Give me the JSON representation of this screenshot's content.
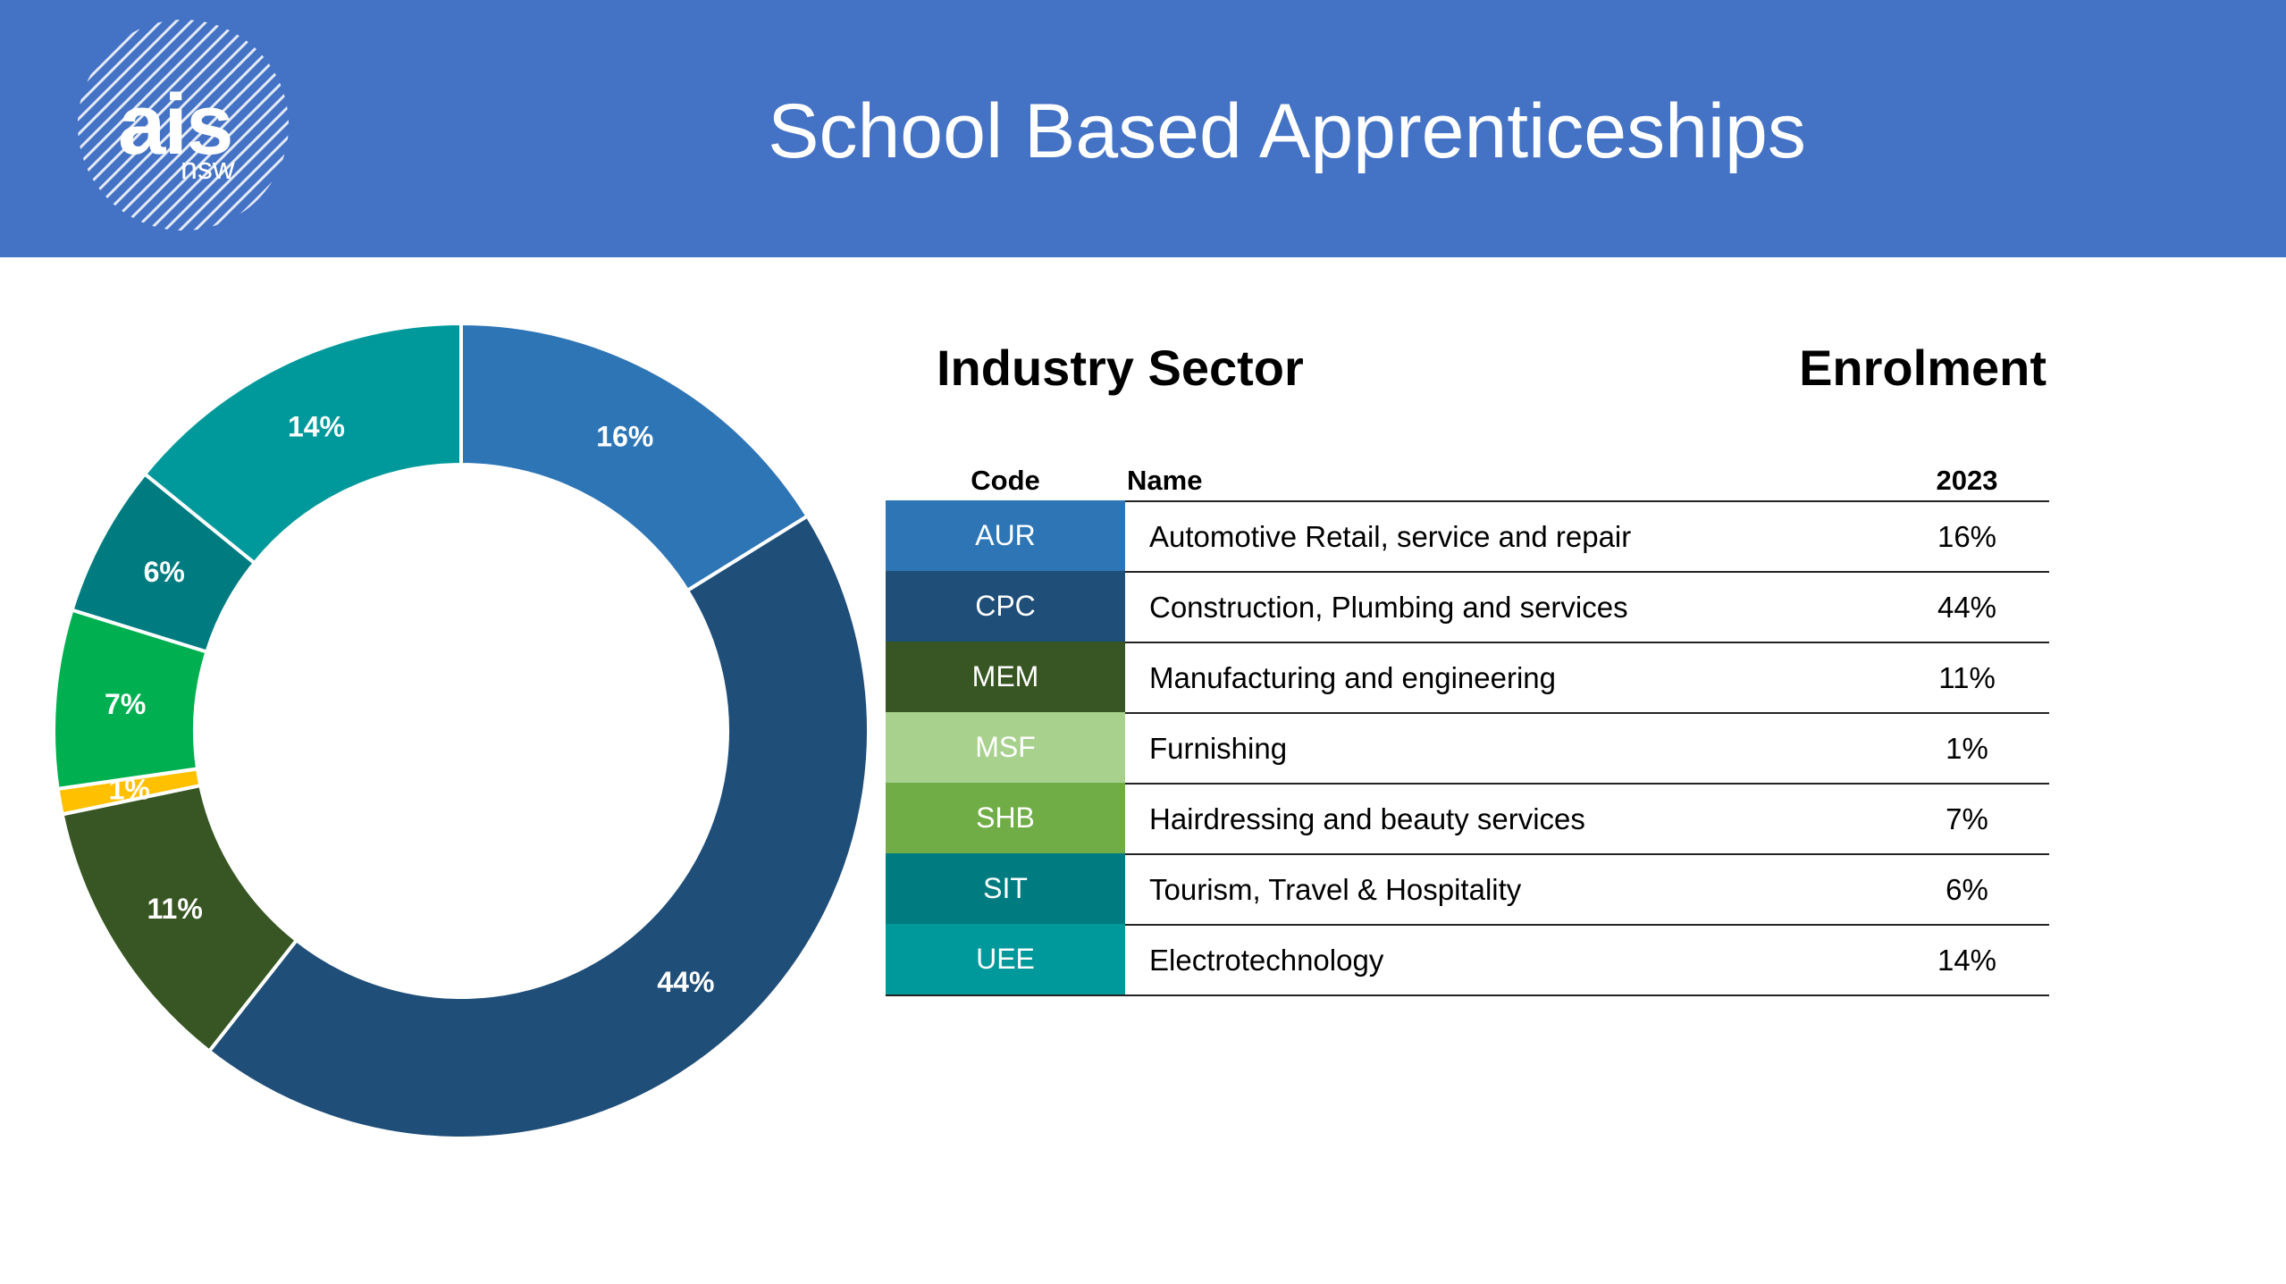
{
  "header": {
    "title": "School Based Apprenticeships",
    "logo_main": "ais",
    "logo_sub": "nsw",
    "background": "#4472C4"
  },
  "headings": {
    "left": "Industry Sector",
    "right": "Enrolment"
  },
  "table": {
    "columns": [
      "Code",
      "Name",
      "2023"
    ],
    "rows": [
      {
        "code": "AUR",
        "name": "Automotive Retail, service and repair",
        "value": "16%",
        "color": "#2E75B6"
      },
      {
        "code": "CPC",
        "name": "Construction, Plumbing and services",
        "value": "44%",
        "color": "#1F4E79"
      },
      {
        "code": "MEM",
        "name": "Manufacturing and engineering",
        "value": "11%",
        "color": "#375623"
      },
      {
        "code": "MSF",
        "name": "Furnishing",
        "value": "1%",
        "color": "#A9D18E"
      },
      {
        "code": "SHB",
        "name": "Hairdressing and beauty services",
        "value": "7%",
        "color": "#70AD47"
      },
      {
        "code": "SIT",
        "name": "Tourism, Travel & Hospitality",
        "value": "6%",
        "color": "#007C80"
      },
      {
        "code": "UEE",
        "name": "Electrotechnology",
        "value": "14%",
        "color": "#00999B"
      }
    ]
  },
  "chart_data": {
    "type": "pie",
    "donut": true,
    "title": "",
    "slices": [
      {
        "label": "16%",
        "value": 16,
        "color": "#2E75B6"
      },
      {
        "label": "44%",
        "value": 44,
        "color": "#1F4E79"
      },
      {
        "label": "11%",
        "value": 11,
        "color": "#375623"
      },
      {
        "label": "1%",
        "value": 1,
        "color": "#FFC000"
      },
      {
        "label": "7%",
        "value": 7,
        "color": "#00B050"
      },
      {
        "label": "6%",
        "value": 6,
        "color": "#007C80"
      },
      {
        "label": "14%",
        "value": 14,
        "color": "#00999B"
      }
    ]
  }
}
